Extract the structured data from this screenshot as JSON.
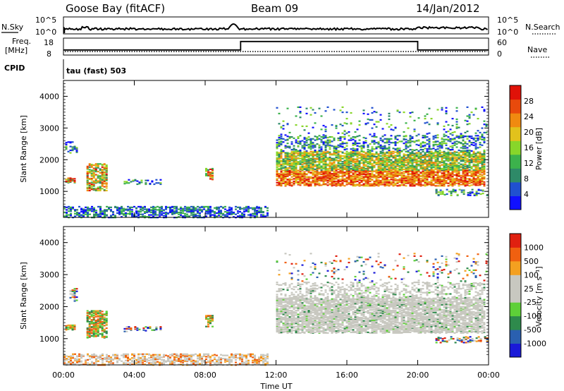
{
  "header": {
    "station": "Goose Bay (fitACF)",
    "beam": "Beam 09",
    "date": "14/Jan/2012"
  },
  "strip_labels": {
    "nsky": "N.Sky",
    "nsky_hi": "10^5",
    "nsky_lo": "10^0",
    "nsearch": "N.Search",
    "nsearch_hi": "10^5",
    "nsearch_lo": "10^0",
    "freq_line1": "Freq.",
    "freq_line2": "[MHz]",
    "freq_hi": "18",
    "freq_lo": "8",
    "nave": "Nave",
    "nave_hi": "60",
    "nave_lo": "0",
    "cpid": "CPID",
    "cpid_text": "tau (fast) 503"
  },
  "panels": {
    "power": {
      "ylabel": "Slant Range [km]",
      "cbar_label": "Power [dB]"
    },
    "velocity": {
      "ylabel": "Slant Range [km]",
      "cbar_label": "Velocity [m s⁻¹]"
    },
    "xlabel": "Time UT"
  },
  "chart_data": [
    {
      "type": "heatmap",
      "name_hint": "power",
      "x_range_hours": [
        0,
        24
      ],
      "y_range_km": [
        180,
        4500
      ],
      "y_ticks": [
        1000,
        2000,
        3000,
        4000
      ],
      "y_tick_labels": [
        "1000",
        "2000",
        "3000",
        "4000"
      ],
      "x_ticks": [
        0,
        4,
        8,
        12,
        16,
        20,
        24
      ],
      "x_tick_labels": [
        "00:00",
        "04:00",
        "08:00",
        "12:00",
        "16:00",
        "20:00",
        "00:00"
      ],
      "colorbar": {
        "labels": [
          "4",
          "8",
          "12",
          "16",
          "20",
          "24",
          "28"
        ],
        "range": [
          0,
          30
        ],
        "colors": [
          "#1010ff",
          "#2050d0",
          "#2e8a68",
          "#3cb24c",
          "#88d62a",
          "#e2c21c",
          "#f08a10",
          "#e84a0c",
          "#e01208"
        ]
      }
    },
    {
      "type": "heatmap",
      "name_hint": "velocity",
      "x_range_hours": [
        0,
        24
      ],
      "y_range_km": [
        180,
        4500
      ],
      "y_ticks": [
        1000,
        2000,
        3000,
        4000
      ],
      "y_tick_labels": [
        "1000",
        "2000",
        "3000",
        "4000"
      ],
      "x_ticks": [
        0,
        4,
        8,
        12,
        16,
        20,
        24
      ],
      "x_tick_labels": [
        "00:00",
        "04:00",
        "08:00",
        "12:00",
        "16:00",
        "20:00",
        "00:00"
      ],
      "colorbar": {
        "labels": [
          "1000",
          "500",
          "100",
          "25",
          "-25",
          "-100",
          "-500",
          "-1000"
        ],
        "colors": [
          "#1a1ad8",
          "#2a60b0",
          "#2e8a4c",
          "#5ed038",
          "#c8c8c0",
          "#c8c8c0",
          "#f4a020",
          "#f06010",
          "#e02010"
        ]
      }
    },
    {
      "type": "line",
      "name_hint": "frequency",
      "ylim": [
        8,
        18
      ],
      "segments": [
        {
          "x": [
            0,
            10,
            10,
            20,
            20,
            24
          ],
          "y": [
            11,
            11,
            16,
            16,
            11,
            11
          ]
        }
      ]
    }
  ]
}
